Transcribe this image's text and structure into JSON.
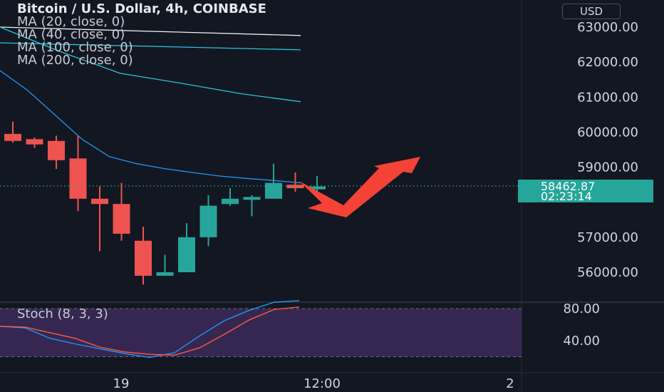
{
  "header": {
    "title": "Bitcoin / U.S. Dollar, 4h, COINBASE",
    "indicators": [
      "MA (20, close, 0)",
      "MA (40, close, 0)",
      "MA (100, close, 0)",
      "MA (200, close, 0)"
    ]
  },
  "currency_button": "USD",
  "price_label": {
    "price": "58462.87",
    "countdown": "02:23:14"
  },
  "oscillator": {
    "label": "Stoch (8, 3, 3)"
  },
  "colors": {
    "background": "#131722",
    "up": "#26a69a",
    "down": "#ef5350",
    "ma20": "#f0f0f0",
    "ma40": "#26c6da",
    "ma100": "#26c6da",
    "ma200": "#2196f3",
    "stoch_k": "#2196f3",
    "stoch_d": "#ff5a3c",
    "stoch_band": "#3c2a5a",
    "arrow": "#f44336"
  },
  "chart_data": [
    {
      "type": "candlestick",
      "y_axis_ticks": [
        "63000.00",
        "62000.00",
        "61000.00",
        "60000.00",
        "59000.00",
        "57000.00",
        "56000.00"
      ],
      "x_axis_ticks": [
        "19",
        "12:00",
        "2"
      ],
      "ylim": [
        55200,
        63700
      ],
      "candles": [
        {
          "o": 59950,
          "h": 60300,
          "l": 59700,
          "c": 59750
        },
        {
          "o": 59800,
          "h": 59850,
          "l": 59550,
          "c": 59650
        },
        {
          "o": 59750,
          "h": 59900,
          "l": 58950,
          "c": 59200
        },
        {
          "o": 59250,
          "h": 59900,
          "l": 57750,
          "c": 58100
        },
        {
          "o": 58100,
          "h": 58450,
          "l": 56600,
          "c": 57950
        },
        {
          "o": 57950,
          "h": 58550,
          "l": 56900,
          "c": 57100
        },
        {
          "o": 56900,
          "h": 57300,
          "l": 55650,
          "c": 55900
        },
        {
          "o": 55900,
          "h": 56500,
          "l": 55900,
          "c": 56000
        },
        {
          "o": 56000,
          "h": 57400,
          "l": 56000,
          "c": 57000
        },
        {
          "o": 57000,
          "h": 58200,
          "l": 56750,
          "c": 57900
        },
        {
          "o": 57950,
          "h": 58400,
          "l": 57900,
          "c": 58100
        },
        {
          "o": 58150,
          "h": 58200,
          "l": 57600,
          "c": 58150
        },
        {
          "o": 58100,
          "h": 59100,
          "l": 58100,
          "c": 58550
        },
        {
          "o": 58500,
          "h": 58850,
          "l": 58300,
          "c": 58400
        },
        {
          "o": 58450,
          "h": 58750,
          "l": 58300,
          "c": 58450
        }
      ],
      "moving_averages": [
        {
          "name": "MA 20",
          "values": [
            63000,
            62760
          ]
        },
        {
          "name": "MA 40",
          "values": [
            62550,
            62350
          ]
        },
        {
          "name": "MA 100",
          "values": [
            63000,
            62300,
            61680,
            61400,
            61100,
            60870
          ]
        },
        {
          "name": "MA 200",
          "values": [
            61760,
            61200,
            60500,
            59800,
            59300,
            59100,
            58960,
            58850,
            58750,
            58680,
            58620,
            58550
          ]
        }
      ],
      "current_price": 58462.87
    },
    {
      "type": "line",
      "label": "Stoch (8, 3, 3)",
      "y_axis_ticks": [
        "80.00",
        "40.00"
      ],
      "ylim": [
        15,
        90
      ],
      "band": [
        20,
        80
      ],
      "series": [
        {
          "values": [
            58,
            56,
            43,
            36,
            30,
            24,
            19,
            25,
            46,
            65,
            78,
            88,
            90
          ]
        },
        {
          "values": [
            58,
            57,
            50,
            43,
            32,
            26,
            23,
            22,
            31,
            48,
            66,
            79,
            82
          ]
        }
      ]
    }
  ]
}
